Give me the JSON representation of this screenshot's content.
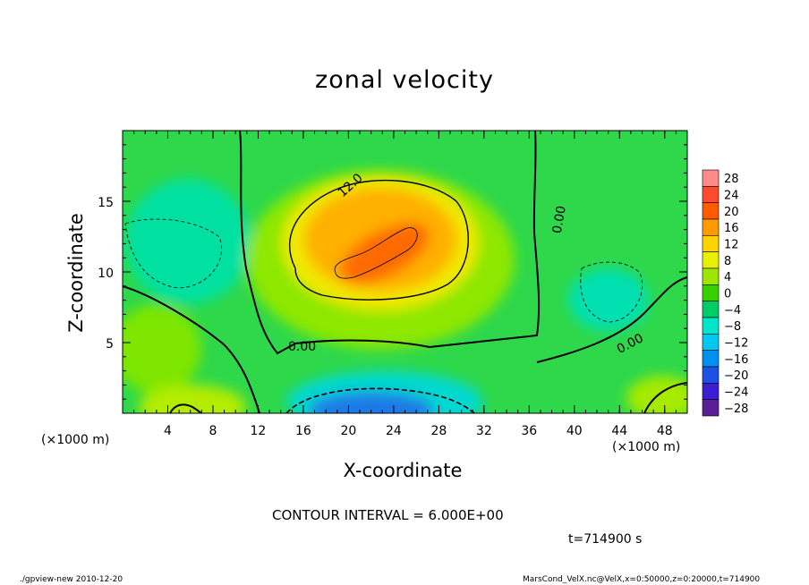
{
  "chart_data": {
    "type": "heatmap",
    "title": "zonal velocity",
    "xlabel": "X-coordinate",
    "ylabel": "Z-coordinate",
    "x_unit_label": "(×1000 m)",
    "y_unit_label": "(×1000 m)",
    "xlim": [
      0,
      50
    ],
    "ylim": [
      0,
      20
    ],
    "x_ticks": [
      4,
      8,
      12,
      16,
      20,
      24,
      28,
      32,
      36,
      40,
      44,
      48
    ],
    "y_ticks": [
      5,
      10,
      15
    ],
    "colorbar": {
      "levels": [
        28,
        24,
        20,
        16,
        12,
        8,
        4,
        0,
        -4,
        -8,
        -12,
        -16,
        -20,
        -24,
        -28
      ],
      "colors": [
        "#ff8a8a",
        "#ff4a2e",
        "#ff5a00",
        "#ff9a00",
        "#ffd400",
        "#e6f000",
        "#9ee600",
        "#38d000",
        "#00cc66",
        "#00e6c8",
        "#00c8f0",
        "#0090f0",
        "#1e50e6",
        "#3c1ed2",
        "#5a1e96"
      ]
    },
    "contour_labels": [
      "12.0",
      "0.00",
      "0.00",
      "0.00"
    ],
    "contour_interval_text": "CONTOUR INTERVAL = 6.000E+00",
    "time_text": "t=714900 s"
  },
  "footer": {
    "left": "./gpview-new  2010-12-20",
    "right": "MarsCond_VelX.nc@VelX,x=0:50000,z=0:20000,t=714900"
  }
}
